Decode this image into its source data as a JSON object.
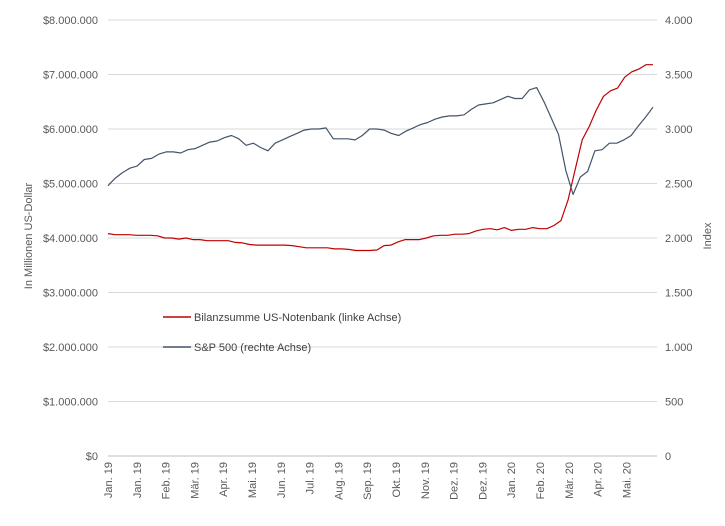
{
  "chart_data": {
    "type": "line",
    "title": "",
    "ylabel_left": "In Millionen US-Dollar",
    "ylabel_right": "Index",
    "xlabel": "",
    "grid": true,
    "legend_position": "center-left",
    "y_left": {
      "min": 0,
      "max": 8000000,
      "ticks": [
        0,
        1000000,
        2000000,
        3000000,
        4000000,
        5000000,
        6000000,
        7000000,
        8000000
      ],
      "tick_labels": [
        "$0",
        "$1.000.000",
        "$2.000.000",
        "$3.000.000",
        "$4.000.000",
        "$5.000.000",
        "$6.000.000",
        "$7.000.000",
        "$8.000.000"
      ]
    },
    "y_right": {
      "min": 0,
      "max": 4000,
      "ticks": [
        0,
        500,
        1000,
        1500,
        2000,
        2500,
        3000,
        3500,
        4000
      ],
      "tick_labels": [
        "0",
        "500",
        "1.000",
        "1.500",
        "2.000",
        "2.500",
        "3.000",
        "3.500",
        "4.000"
      ]
    },
    "x_tick_labels": [
      "Jan. 19",
      "Jan. 19",
      "Feb. 19",
      "Mär. 19",
      "Apr. 19",
      "Mai. 19",
      "Jun. 19",
      "Jul. 19",
      "Aug. 19",
      "Sep. 19",
      "Okt. 19",
      "Nov. 19",
      "Dez. 19",
      "Dez. 19",
      "Jan. 20",
      "Feb. 20",
      "Mär. 20",
      "Apr. 20",
      "Mai. 20"
    ],
    "series": [
      {
        "name": "Bilanzsumme US-Notenbank (linke Achse)",
        "axis": "left",
        "color": "#c00000",
        "values": [
          4080000,
          4060000,
          4060000,
          4060000,
          4050000,
          4050000,
          4050000,
          4040000,
          4000000,
          4000000,
          3980000,
          4000000,
          3970000,
          3970000,
          3950000,
          3950000,
          3950000,
          3950000,
          3920000,
          3910000,
          3880000,
          3870000,
          3870000,
          3870000,
          3870000,
          3870000,
          3860000,
          3840000,
          3820000,
          3820000,
          3820000,
          3820000,
          3800000,
          3800000,
          3790000,
          3770000,
          3770000,
          3770000,
          3780000,
          3860000,
          3870000,
          3930000,
          3970000,
          3970000,
          3970000,
          4000000,
          4040000,
          4050000,
          4050000,
          4070000,
          4070000,
          4080000,
          4130000,
          4160000,
          4170000,
          4150000,
          4190000,
          4140000,
          4160000,
          4160000,
          4190000,
          4170000,
          4170000,
          4230000,
          4320000,
          4700000,
          5250000,
          5800000,
          6050000,
          6350000,
          6600000,
          6700000,
          6750000,
          6950000,
          7050000,
          7100000,
          7180000,
          7180000
        ]
      },
      {
        "name": "S&P 500 (rechte Achse)",
        "axis": "right",
        "color": "#44546a",
        "values": [
          2480,
          2550,
          2600,
          2640,
          2660,
          2720,
          2730,
          2770,
          2790,
          2790,
          2780,
          2810,
          2820,
          2850,
          2880,
          2890,
          2920,
          2940,
          2910,
          2850,
          2870,
          2830,
          2800,
          2870,
          2900,
          2930,
          2960,
          2990,
          3000,
          3000,
          3010,
          2910,
          2910,
          2910,
          2900,
          2940,
          3000,
          3000,
          2990,
          2960,
          2940,
          2980,
          3010,
          3040,
          3060,
          3090,
          3110,
          3120,
          3120,
          3130,
          3180,
          3220,
          3230,
          3240,
          3270,
          3300,
          3280,
          3280,
          3360,
          3380,
          3250,
          3100,
          2950,
          2620,
          2400,
          2560,
          2610,
          2800,
          2810,
          2870,
          2870,
          2900,
          2940,
          3030,
          3110,
          3200
        ]
      }
    ]
  }
}
